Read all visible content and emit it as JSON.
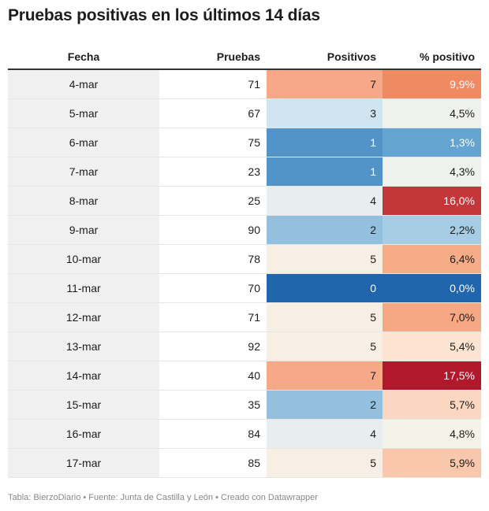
{
  "title": "Pruebas positivas en los últimos 14 días",
  "footer": "Tabla: BierzoDiario • Fuente: Junta de Castilla y León • Creado con Datawrapper",
  "chart_data": {
    "type": "table",
    "columns": [
      "Fecha",
      "Pruebas",
      "Positivos",
      "% positivo"
    ],
    "rows": [
      {
        "fecha": "4-mar",
        "pruebas": "71",
        "positivos": "7",
        "pct": "9,9%",
        "pos_bg": "#f6a887",
        "pos_fg": "#1d1d1d",
        "pct_bg": "#ef8a62",
        "pct_fg": "#ffffff"
      },
      {
        "fecha": "5-mar",
        "pruebas": "67",
        "positivos": "3",
        "pct": "4,5%",
        "pos_bg": "#d1e5f0",
        "pos_fg": "#1d1d1d",
        "pct_bg": "#eff1ec",
        "pct_fg": "#1d1d1d"
      },
      {
        "fecha": "6-mar",
        "pruebas": "75",
        "positivos": "1",
        "pct": "1,3%",
        "pos_bg": "#5294c8",
        "pos_fg": "#ffffff",
        "pct_bg": "#63a4d0",
        "pct_fg": "#ffffff"
      },
      {
        "fecha": "7-mar",
        "pruebas": "23",
        "positivos": "1",
        "pct": "4,3%",
        "pos_bg": "#5294c8",
        "pos_fg": "#ffffff",
        "pct_bg": "#eef1ec",
        "pct_fg": "#1d1d1d"
      },
      {
        "fecha": "8-mar",
        "pruebas": "25",
        "positivos": "4",
        "pct": "16,0%",
        "pos_bg": "#e8eeee",
        "pos_fg": "#1d1d1d",
        "pct_bg": "#c3373a",
        "pct_fg": "#ffffff"
      },
      {
        "fecha": "9-mar",
        "pruebas": "90",
        "positivos": "2",
        "pct": "2,2%",
        "pos_bg": "#92c0de",
        "pos_fg": "#1d1d1d",
        "pct_bg": "#a6cde3",
        "pct_fg": "#1d1d1d"
      },
      {
        "fecha": "10-mar",
        "pruebas": "78",
        "positivos": "5",
        "pct": "6,4%",
        "pos_bg": "#f8efe4",
        "pos_fg": "#1d1d1d",
        "pct_bg": "#f7ac88",
        "pct_fg": "#1d1d1d"
      },
      {
        "fecha": "11-mar",
        "pruebas": "70",
        "positivos": "0",
        "pct": "0,0%",
        "pos_bg": "#2166ac",
        "pos_fg": "#ffffff",
        "pct_bg": "#2166ac",
        "pct_fg": "#ffffff"
      },
      {
        "fecha": "12-mar",
        "pruebas": "71",
        "positivos": "5",
        "pct": "7,0%",
        "pos_bg": "#f8efe4",
        "pos_fg": "#1d1d1d",
        "pct_bg": "#f6a784",
        "pct_fg": "#1d1d1d"
      },
      {
        "fecha": "13-mar",
        "pruebas": "92",
        "positivos": "5",
        "pct": "5,4%",
        "pos_bg": "#f8efe4",
        "pos_fg": "#1d1d1d",
        "pct_bg": "#fce3d2",
        "pct_fg": "#1d1d1d"
      },
      {
        "fecha": "14-mar",
        "pruebas": "40",
        "positivos": "7",
        "pct": "17,5%",
        "pos_bg": "#f6a887",
        "pos_fg": "#1d1d1d",
        "pct_bg": "#b2182b",
        "pct_fg": "#ffffff"
      },
      {
        "fecha": "15-mar",
        "pruebas": "35",
        "positivos": "2",
        "pct": "5,7%",
        "pos_bg": "#92c0de",
        "pos_fg": "#1d1d1d",
        "pct_bg": "#fbd7c1",
        "pct_fg": "#1d1d1d"
      },
      {
        "fecha": "16-mar",
        "pruebas": "84",
        "positivos": "4",
        "pct": "4,8%",
        "pos_bg": "#e8eeee",
        "pos_fg": "#1d1d1d",
        "pct_bg": "#f4f3e9",
        "pct_fg": "#1d1d1d"
      },
      {
        "fecha": "17-mar",
        "pruebas": "85",
        "positivos": "5",
        "pct": "5,9%",
        "pos_bg": "#f8efe4",
        "pos_fg": "#1d1d1d",
        "pct_bg": "#f9c7ab",
        "pct_fg": "#1d1d1d"
      }
    ]
  }
}
